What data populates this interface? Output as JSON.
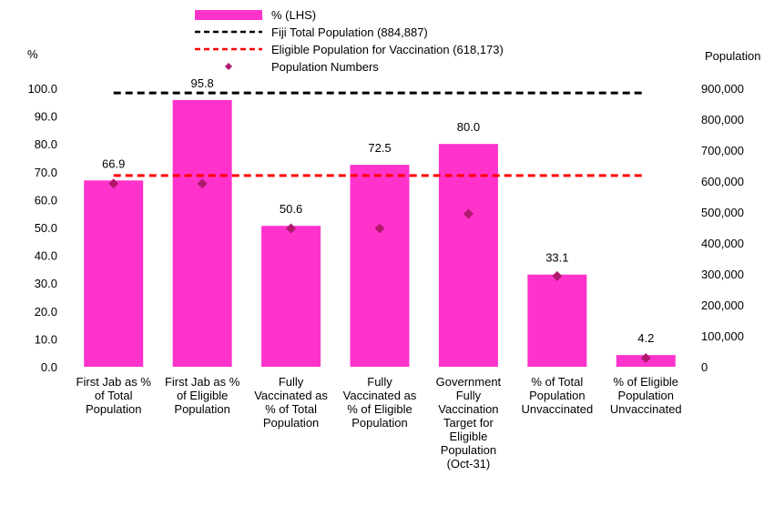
{
  "chart_data": {
    "type": "bar",
    "categories": [
      [
        "First Jab as %",
        "of Total",
        "Population"
      ],
      [
        "First Jab as %",
        "of Eligible",
        "Population"
      ],
      [
        "Fully",
        "Vaccinated as",
        "% of Total",
        "Population"
      ],
      [
        "Fully",
        "Vaccinated as",
        "% of Eligible",
        "Population"
      ],
      [
        "Government",
        "Fully",
        "Vaccination",
        "Target for",
        "Eligible",
        "Population",
        "(Oct-31)"
      ],
      [
        "% of Total",
        "Population",
        "Unvaccinated"
      ],
      [
        "% of Eligible",
        "Population",
        "Unvaccinated"
      ]
    ],
    "series": [
      {
        "name": "% (LHS)",
        "axis": "left",
        "values": [
          66.9,
          95.8,
          50.6,
          72.5,
          80.0,
          33.1,
          4.2
        ],
        "labels": [
          "66.9",
          "95.8",
          "50.6",
          "72.5",
          "80.0",
          "33.1",
          "4.2"
        ],
        "color": "#ff33cc"
      },
      {
        "name": "Population Numbers",
        "axis": "right",
        "values": [
          592000,
          592000,
          447000,
          447000,
          494000,
          293000,
          28000
        ],
        "color": "#b0186e"
      }
    ],
    "reference_lines": [
      {
        "name": "Fiji Total Population (884,887)",
        "axis": "right",
        "value": 884887,
        "color": "#000000"
      },
      {
        "name": "Eligible Population for Vaccination (618,173)",
        "axis": "right",
        "value": 618173,
        "color": "#ff0000"
      }
    ],
    "y_left": {
      "label": "%",
      "ylim": [
        0,
        100
      ],
      "ticks": [
        "0.0",
        "10.0",
        "20.0",
        "30.0",
        "40.0",
        "50.0",
        "60.0",
        "70.0",
        "80.0",
        "90.0",
        "100.0"
      ]
    },
    "y_right": {
      "label": "Population",
      "ylim": [
        0,
        900000
      ],
      "ticks": [
        "0",
        "100,000",
        "200,000",
        "300,000",
        "400,000",
        "500,000",
        "600,000",
        "700,000",
        "800,000",
        "900,000"
      ]
    },
    "legend_position": "top",
    "grid": false
  }
}
